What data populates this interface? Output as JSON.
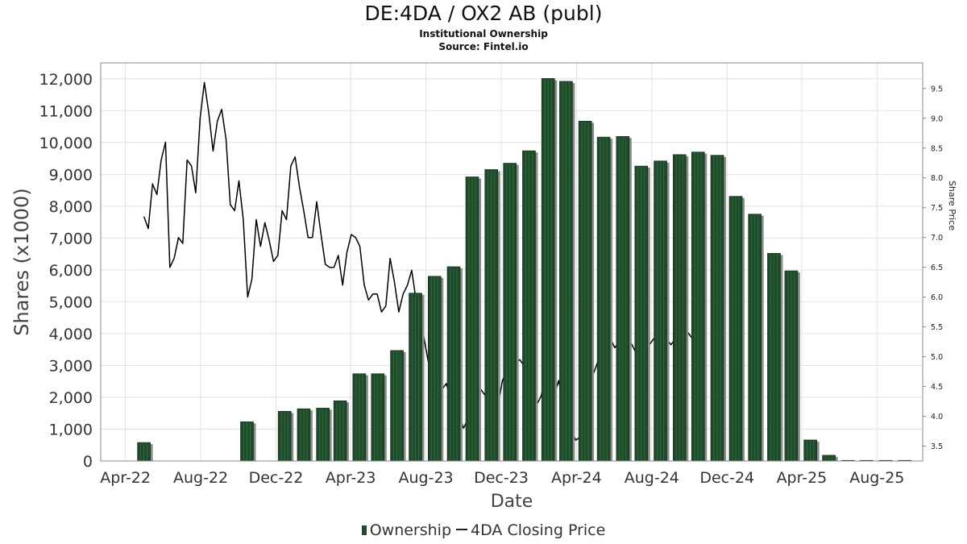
{
  "title": "DE:4DA / OX2 AB (publ)",
  "subtitle": "Institutional Ownership",
  "source": "Source: Fintel.io",
  "legend": {
    "series1": "Ownership",
    "series2": "4DA Closing Price"
  },
  "colors": {
    "bar": "#1e4a2a",
    "bar_shadow": "#8c8c8c",
    "line": "#000000",
    "grid": "#e2e2e2"
  },
  "chart_data": {
    "type": "bar",
    "xlabel": "Date",
    "ylabel": "Shares (x1000)",
    "y2label": "Share Price",
    "ylim": [
      0,
      12500
    ],
    "y2lim": [
      3.25,
      9.93
    ],
    "yticks": [
      0,
      1000,
      2000,
      3000,
      4000,
      5000,
      6000,
      7000,
      8000,
      9000,
      10000,
      11000,
      12000
    ],
    "ytick_labels": [
      "0",
      "1,000",
      "2,000",
      "3,000",
      "4,000",
      "5,000",
      "6,000",
      "7,000",
      "8,000",
      "9,000",
      "10,000",
      "11,000",
      "12,000"
    ],
    "y2ticks": [
      3.5,
      4.0,
      4.5,
      5.0,
      5.5,
      6.0,
      6.5,
      7.0,
      7.5,
      8.0,
      8.5,
      9.0,
      9.5
    ],
    "y2tick_labels": [
      "3.5",
      "4.0",
      "4.5",
      "5.0",
      "5.5",
      "6.0",
      "6.5",
      "7.0",
      "7.5",
      "8.0",
      "8.5",
      "9.0",
      "9.5"
    ],
    "xticks": [
      "2022-04-01",
      "2022-08-01",
      "2022-12-01",
      "2023-04-01",
      "2023-08-01",
      "2023-12-01",
      "2024-04-01",
      "2024-08-01",
      "2024-12-01",
      "2025-04-01",
      "2025-08-01"
    ],
    "xtick_labels": [
      "Apr-22",
      "Aug-22",
      "Dec-22",
      "Apr-23",
      "Aug-23",
      "Dec-23",
      "Apr-24",
      "Aug-24",
      "Dec-24",
      "Apr-25",
      "Aug-25"
    ],
    "xlim": [
      "2022-02-20",
      "2025-10-14"
    ],
    "grid": true,
    "legend_position": "bottom",
    "series": [
      {
        "name": "Ownership",
        "type": "bar",
        "dates": [
          "2022-05-01",
          "2022-10-15",
          "2022-12-15",
          "2023-01-15",
          "2023-02-15",
          "2023-03-15",
          "2023-04-15",
          "2023-05-15",
          "2023-06-15",
          "2023-07-15",
          "2023-08-15",
          "2023-09-15",
          "2023-10-15",
          "2023-11-15",
          "2023-12-15",
          "2024-01-15",
          "2024-02-15",
          "2024-03-15",
          "2024-04-15",
          "2024-05-15",
          "2024-06-15",
          "2024-07-15",
          "2024-08-15",
          "2024-09-15",
          "2024-10-15",
          "2024-11-15",
          "2024-12-15",
          "2025-01-15",
          "2025-02-15",
          "2025-03-15",
          "2025-04-15",
          "2025-05-15",
          "2025-06-15",
          "2025-07-15",
          "2025-08-15",
          "2025-09-15"
        ],
        "values": [
          580,
          1230,
          1560,
          1640,
          1660,
          1890,
          2740,
          2740,
          3470,
          5270,
          5800,
          6100,
          8920,
          9150,
          9350,
          9740,
          12010,
          11920,
          10670,
          10170,
          10190,
          9260,
          9420,
          9620,
          9700,
          9600,
          8310,
          7750,
          6520,
          5970,
          660,
          180,
          10,
          5,
          8,
          5
        ]
      },
      {
        "name": "4DA Closing Price",
        "type": "line",
        "dates": [
          "2022-05-01",
          "2022-05-08",
          "2022-05-15",
          "2022-05-22",
          "2022-05-29",
          "2022-06-05",
          "2022-06-12",
          "2022-06-19",
          "2022-06-26",
          "2022-07-03",
          "2022-07-10",
          "2022-07-17",
          "2022-07-24",
          "2022-07-31",
          "2022-08-07",
          "2022-08-14",
          "2022-08-21",
          "2022-08-28",
          "2022-09-04",
          "2022-09-11",
          "2022-09-18",
          "2022-09-25",
          "2022-10-02",
          "2022-10-09",
          "2022-10-16",
          "2022-10-23",
          "2022-10-30",
          "2022-11-06",
          "2022-11-13",
          "2022-11-20",
          "2022-11-27",
          "2022-12-04",
          "2022-12-11",
          "2022-12-18",
          "2022-12-25",
          "2023-01-01",
          "2023-01-08",
          "2023-01-15",
          "2023-01-22",
          "2023-01-29",
          "2023-02-05",
          "2023-02-12",
          "2023-02-19",
          "2023-02-26",
          "2023-03-05",
          "2023-03-12",
          "2023-03-19",
          "2023-03-26",
          "2023-04-02",
          "2023-04-09",
          "2023-04-16",
          "2023-04-23",
          "2023-04-30",
          "2023-05-07",
          "2023-05-14",
          "2023-05-21",
          "2023-05-28",
          "2023-06-04",
          "2023-06-11",
          "2023-06-18",
          "2023-06-25",
          "2023-07-02",
          "2023-07-09",
          "2023-07-16",
          "2023-07-23",
          "2023-07-30",
          "2023-08-06",
          "2023-08-13",
          "2023-08-20",
          "2023-08-27",
          "2023-09-03",
          "2023-09-10",
          "2023-09-17",
          "2023-09-24",
          "2023-10-01",
          "2023-10-08",
          "2023-10-15",
          "2023-10-22",
          "2023-10-29",
          "2023-11-05",
          "2023-11-12",
          "2023-11-19",
          "2023-11-26",
          "2023-12-03",
          "2023-12-10",
          "2023-12-17",
          "2023-12-24",
          "2023-12-31",
          "2024-01-07",
          "2024-01-14",
          "2024-01-21",
          "2024-01-28",
          "2024-02-04",
          "2024-02-11",
          "2024-02-18",
          "2024-02-25",
          "2024-03-03",
          "2024-03-10",
          "2024-03-17",
          "2024-03-24",
          "2024-03-31",
          "2024-04-07",
          "2024-04-14",
          "2024-04-21",
          "2024-04-28",
          "2024-05-05",
          "2024-05-12",
          "2024-05-19",
          "2024-05-26",
          "2024-06-02",
          "2024-06-09",
          "2024-06-16",
          "2024-06-23",
          "2024-06-30",
          "2024-07-07",
          "2024-07-14",
          "2024-07-21",
          "2024-07-28",
          "2024-08-04",
          "2024-08-11",
          "2024-08-18",
          "2024-08-25",
          "2024-09-01",
          "2024-09-08",
          "2024-09-15",
          "2024-09-22",
          "2024-09-29",
          "2024-10-06",
          "2024-10-13"
        ],
        "values": [
          7.35,
          7.15,
          7.9,
          7.72,
          8.3,
          8.6,
          6.5,
          6.65,
          7.0,
          6.9,
          8.3,
          8.2,
          7.75,
          9.0,
          9.6,
          9.1,
          8.45,
          8.95,
          9.15,
          8.65,
          7.55,
          7.45,
          7.95,
          7.3,
          6.0,
          6.3,
          7.3,
          6.85,
          7.25,
          6.95,
          6.6,
          6.7,
          7.45,
          7.3,
          8.2,
          8.35,
          7.85,
          7.45,
          7.0,
          7.0,
          7.6,
          7.05,
          6.55,
          6.5,
          6.5,
          6.7,
          6.2,
          6.75,
          7.05,
          7.0,
          6.85,
          6.2,
          5.95,
          6.05,
          6.05,
          5.75,
          5.85,
          6.65,
          6.25,
          5.75,
          6.05,
          6.2,
          6.45,
          5.95,
          5.65,
          5.25,
          4.85,
          4.75,
          4.65,
          4.45,
          4.55,
          4.3,
          3.9,
          4.0,
          3.8,
          3.95,
          4.1,
          4.3,
          4.45,
          4.35,
          4.6,
          4.4,
          4.2,
          4.6,
          4.75,
          4.82,
          4.9,
          4.95,
          4.85,
          4.75,
          4.4,
          4.2,
          4.35,
          4.75,
          4.7,
          4.35,
          4.6,
          4.25,
          4.05,
          3.75,
          3.6,
          3.65,
          3.62,
          4.35,
          4.7,
          4.9,
          5.2,
          5.35,
          5.3,
          5.15,
          5.25,
          5.28,
          5.3,
          5.2,
          5.05,
          5.0,
          5.1,
          5.2,
          5.3,
          5.25,
          5.35,
          5.3,
          5.2,
          5.3,
          5.35,
          5.28,
          5.4,
          5.3,
          5.2
        ]
      }
    ]
  }
}
